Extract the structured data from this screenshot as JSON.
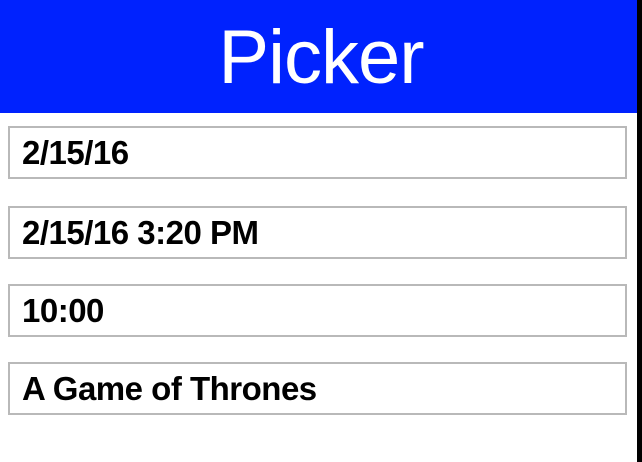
{
  "header": {
    "title": "Picker"
  },
  "fields": [
    {
      "value": "2/15/16"
    },
    {
      "value": "2/15/16 3:20 PM"
    },
    {
      "value": "10:00"
    },
    {
      "value": "A Game of Thrones"
    }
  ],
  "colors": {
    "header_background": "#0022FE",
    "header_text": "#FFFFFF",
    "field_border": "#B9B9B9",
    "field_text": "#000000",
    "page_background": "#FFFFFF",
    "right_edge": "#000000"
  }
}
